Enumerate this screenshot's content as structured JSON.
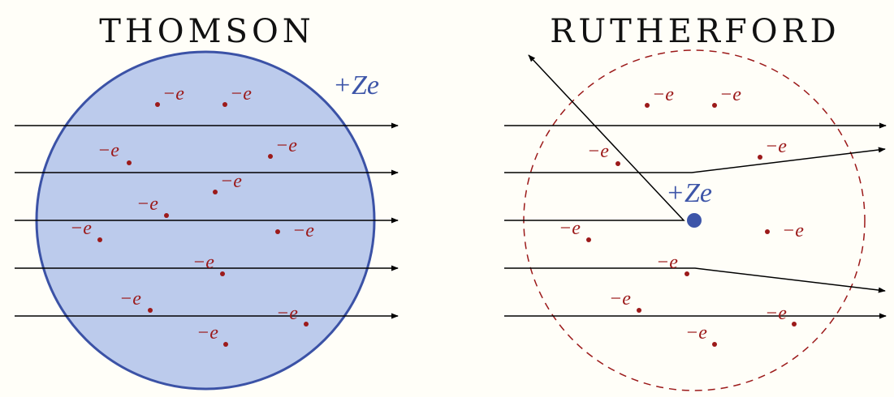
{
  "colors": {
    "background": "#fffef8",
    "electron": "#9c1a1a",
    "nucleus": "#3d55a8",
    "sphere_fill": "#bccbec",
    "sphere_stroke": "#3b52a6",
    "ray": "#000000"
  },
  "thomson": {
    "title": "THOMSON",
    "charge_label": "+Ze",
    "electron_label": "−e"
  },
  "rutherford": {
    "title": "RUTHERFORD",
    "charge_label": "+Ze",
    "electron_label": "−e"
  }
}
